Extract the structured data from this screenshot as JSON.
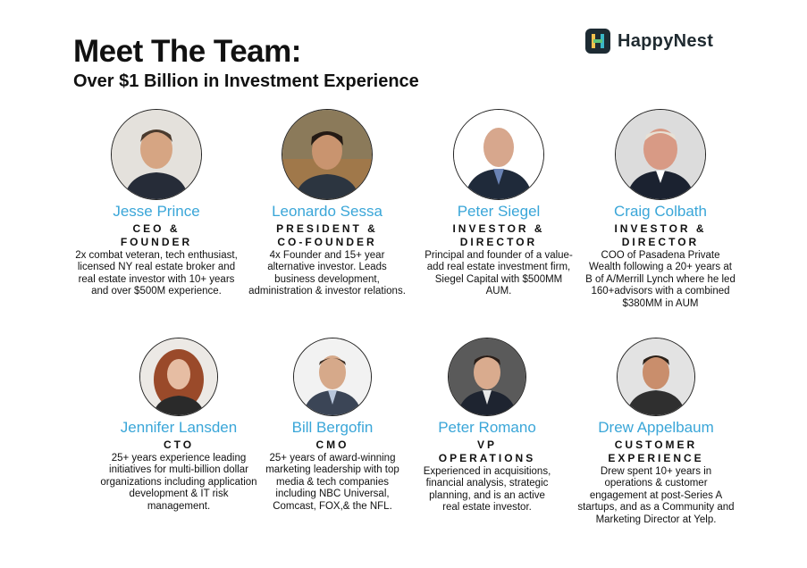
{
  "header": {
    "title": "Meet The Team:",
    "subtitle": "Over $1 Billion in Investment Experience",
    "brand": "HappyNest",
    "brand_color": "#1d2b33",
    "accent_color": "#3aa6d8"
  },
  "team": [
    {
      "name": "Jesse Prince",
      "role": "CEO &\nFOUNDER",
      "bio": "2x combat veteran, tech enthusiast, licensed NY real estate broker and real estate investor with 10+ years and over $500M experience."
    },
    {
      "name": "Leonardo Sessa",
      "role": "PRESIDENT &\nCO-FOUNDER",
      "bio": "4x Founder and 15+ year alternative investor. Leads business development, administration & investor relations."
    },
    {
      "name": "Peter Siegel",
      "role": "INVESTOR &\nDIRECTOR",
      "bio": "Principal and founder of a value-add real estate investment firm, Siegel Capital with $500MM AUM."
    },
    {
      "name": "Craig Colbath",
      "role": "INVESTOR &\nDIRECTOR",
      "bio": "COO of Pasadena Private Wealth following a 20+ years at B of A/Merrill Lynch where he led 160+advisors with a combined $380MM in AUM"
    },
    {
      "name": "Jennifer Lansden",
      "role": "CTO",
      "bio": "25+ years experience leading initiatives for multi-billion dollar organizations including application development & IT risk management."
    },
    {
      "name": "Bill Bergofin",
      "role": "CMO",
      "bio": "25+ years of award-winning marketing leadership with top media & tech companies including NBC Universal, Comcast, FOX,& the NFL."
    },
    {
      "name": "Peter Romano",
      "role": "VP\nOPERATIONS",
      "bio": "Experienced in acquisitions, financial analysis, strategic planning, and is an active real estate investor."
    },
    {
      "name": "Drew Appelbaum",
      "role": "CUSTOMER\nEXPERIENCE",
      "bio": "Drew spent 10+ years in operations & customer engagement at post-Series A startups, and as a Community and Marketing Director at Yelp."
    }
  ]
}
